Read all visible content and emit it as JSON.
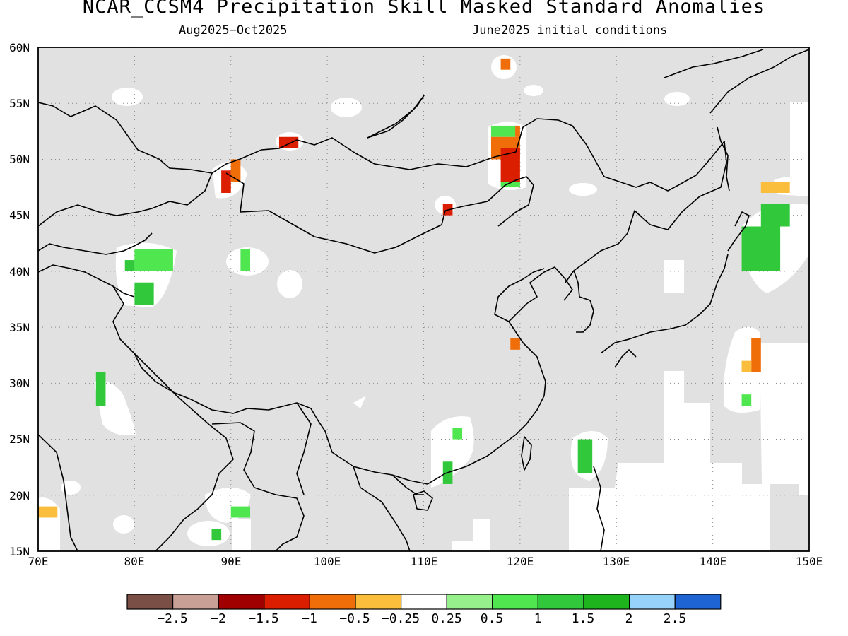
{
  "title": "NCAR_CCSM4 Precipitation Skill Masked Standard Anomalies",
  "subtitle_left": "Aug2025−Oct2025",
  "subtitle_right": "June2025 initial conditions",
  "chart_data": {
    "type": "heatmap",
    "map_extent": {
      "lon": [
        70,
        150
      ],
      "lat": [
        15,
        60
      ]
    },
    "x_tick_labels": [
      "70E",
      "80E",
      "90E",
      "100E",
      "110E",
      "120E",
      "130E",
      "140E",
      "150E"
    ],
    "y_tick_labels": [
      "15N",
      "20N",
      "25N",
      "30N",
      "35N",
      "40N",
      "45N",
      "50N",
      "55N",
      "60N"
    ],
    "grid": "dotted",
    "colorbar": {
      "labels": [
        "−2.5",
        "−2",
        "−1.5",
        "−1",
        "−0.5",
        "−0.25",
        "0.25",
        "0.5",
        "1",
        "1.5",
        "2",
        "2.5"
      ],
      "colors": [
        "#7a5046",
        "#c8a096",
        "#a00000",
        "#dc1e00",
        "#f06e0a",
        "#fabe3c",
        "#ffffff",
        "#96f08c",
        "#50e650",
        "#32c83c",
        "#1eb41e",
        "#96d2fa",
        "#1e64d2"
      ]
    },
    "masked_color": "#e1e1e1",
    "anomaly_regions": [
      {
        "lon": [
          117.0,
          119.5
        ],
        "lat": [
          52.0,
          53.0
        ],
        "value": 0.5
      },
      {
        "lon": [
          119.5,
          120.0
        ],
        "lat": [
          52.0,
          53.0
        ],
        "value": -1.0
      },
      {
        "lon": [
          117.0,
          120.0
        ],
        "lat": [
          50.0,
          52.0
        ],
        "value": -1.0
      },
      {
        "lon": [
          118.0,
          120.0
        ],
        "lat": [
          48.0,
          51.0
        ],
        "value": -1.5
      },
      {
        "lon": [
          118.0,
          120.0
        ],
        "lat": [
          47.5,
          48.0
        ],
        "value": 0.5
      },
      {
        "lon": [
          95.0,
          97.0
        ],
        "lat": [
          51.0,
          52.0
        ],
        "value": -1.5
      },
      {
        "lon": [
          89.0,
          90.0
        ],
        "lat": [
          47.0,
          49.0
        ],
        "value": -1.5
      },
      {
        "lon": [
          90.0,
          91.0
        ],
        "lat": [
          48.0,
          50.0
        ],
        "value": -1.0
      },
      {
        "lon": [
          112.0,
          113.0
        ],
        "lat": [
          45.0,
          46.0
        ],
        "value": -1.5
      },
      {
        "lon": [
          118.0,
          119.0
        ],
        "lat": [
          58.0,
          59.0
        ],
        "value": -1.0
      },
      {
        "lon": [
          119.0,
          120.0
        ],
        "lat": [
          33.0,
          34.0
        ],
        "value": -1.0
      },
      {
        "lon": [
          144.0,
          145.0
        ],
        "lat": [
          31.0,
          34.0
        ],
        "value": -1.0
      },
      {
        "lon": [
          143.0,
          144.0
        ],
        "lat": [
          31.0,
          32.0
        ],
        "value": -0.5
      },
      {
        "lon": [
          145.0,
          148.0
        ],
        "lat": [
          47.0,
          48.0
        ],
        "value": -0.5
      },
      {
        "lon": [
          143.0,
          147.0
        ],
        "lat": [
          40.0,
          44.0
        ],
        "value": 1.0
      },
      {
        "lon": [
          145.0,
          148.0
        ],
        "lat": [
          44.0,
          46.0
        ],
        "value": 1.0
      },
      {
        "lon": [
          80.0,
          84.0
        ],
        "lat": [
          40.0,
          42.0
        ],
        "value": 0.5
      },
      {
        "lon": [
          79.0,
          80.0
        ],
        "lat": [
          40.0,
          41.0
        ],
        "value": 1.0
      },
      {
        "lon": [
          80.0,
          82.0
        ],
        "lat": [
          37.0,
          39.0
        ],
        "value": 1.0
      },
      {
        "lon": [
          91.0,
          92.0
        ],
        "lat": [
          40.0,
          42.0
        ],
        "value": 0.5
      },
      {
        "lon": [
          76.0,
          77.0
        ],
        "lat": [
          28.0,
          31.0
        ],
        "value": 1.0
      },
      {
        "lon": [
          126.0,
          127.5
        ],
        "lat": [
          22.0,
          25.0
        ],
        "value": 1.0
      },
      {
        "lon": [
          112.0,
          113.0
        ],
        "lat": [
          21.0,
          23.0
        ],
        "value": 1.0
      },
      {
        "lon": [
          113.0,
          114.0
        ],
        "lat": [
          25.0,
          26.0
        ],
        "value": 0.5
      },
      {
        "lon": [
          88.0,
          89.0
        ],
        "lat": [
          16.0,
          17.0
        ],
        "value": 1.0
      },
      {
        "lon": [
          90.0,
          92.0
        ],
        "lat": [
          18.0,
          19.0
        ],
        "value": 0.5
      },
      {
        "lon": [
          70.0,
          72.0
        ],
        "lat": [
          18.0,
          19.0
        ],
        "value": -0.5
      },
      {
        "lon": [
          143.0,
          144.0
        ],
        "lat": [
          28.0,
          29.0
        ],
        "value": 0.5
      }
    ]
  }
}
